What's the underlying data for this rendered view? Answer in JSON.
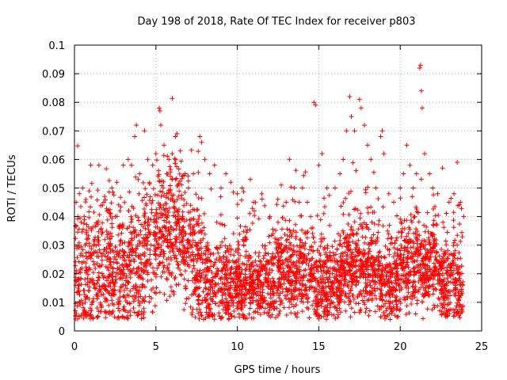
{
  "chart_data": {
    "type": "scatter",
    "title": "Day 198 of 2018, Rate Of TEC Index for receiver p803",
    "xlabel": "GPS time / hours",
    "ylabel": "ROTI / TECUs",
    "xlim": [
      0,
      25
    ],
    "ylim": [
      0,
      0.1
    ],
    "xticks": [
      0,
      5,
      10,
      15,
      20,
      25
    ],
    "xtick_labels": [
      "0",
      "5",
      "10",
      "15",
      "20",
      "25"
    ],
    "yticks": [
      0,
      0.01,
      0.02,
      0.03,
      0.04,
      0.05,
      0.06,
      0.07,
      0.08,
      0.09,
      0.1
    ],
    "ytick_labels": [
      "0",
      "0.01",
      "0.02",
      "0.03",
      "0.04",
      "0.05",
      "0.06",
      "0.07",
      "0.08",
      "0.09",
      "0.1"
    ],
    "grid": true,
    "legend": "none",
    "marker": "plus",
    "series": [
      {
        "color": "#ff0000",
        "points": [
          [
            0.1,
            0.045
          ],
          [
            0.2,
            0.04
          ],
          [
            0.3,
            0.048
          ],
          [
            0.5,
            0.05
          ],
          [
            0.7,
            0.046
          ],
          [
            0.9,
            0.049
          ],
          [
            1.0,
            0.058
          ],
          [
            1.5,
            0.058
          ],
          [
            1.8,
            0.045
          ],
          [
            2.0,
            0.042
          ],
          [
            2.3,
            0.05
          ],
          [
            2.6,
            0.052
          ],
          [
            3.0,
            0.058
          ],
          [
            3.3,
            0.06
          ],
          [
            3.5,
            0.058
          ],
          [
            3.7,
            0.068
          ],
          [
            3.8,
            0.072
          ],
          [
            4.0,
            0.055
          ],
          [
            4.3,
            0.07
          ],
          [
            4.5,
            0.06
          ],
          [
            4.8,
            0.058
          ],
          [
            5.0,
            0.062
          ],
          [
            5.2,
            0.078
          ],
          [
            5.25,
            0.077
          ],
          [
            5.3,
            0.072
          ],
          [
            5.5,
            0.065
          ],
          [
            5.8,
            0.06
          ],
          [
            6.0,
            0.062
          ],
          [
            6.2,
            0.068
          ],
          [
            6.3,
            0.069
          ],
          [
            6.5,
            0.063
          ],
          [
            6.8,
            0.055
          ],
          [
            7.0,
            0.05
          ],
          [
            7.3,
            0.055
          ],
          [
            7.7,
            0.068
          ],
          [
            7.8,
            0.066
          ],
          [
            8.0,
            0.06
          ],
          [
            8.3,
            0.055
          ],
          [
            8.6,
            0.058
          ],
          [
            9.0,
            0.05
          ],
          [
            9.3,
            0.055
          ],
          [
            9.6,
            0.052
          ],
          [
            10.0,
            0.048
          ],
          [
            10.3,
            0.05
          ],
          [
            10.8,
            0.053
          ],
          [
            11.0,
            0.045
          ],
          [
            11.5,
            0.048
          ],
          [
            12.0,
            0.04
          ],
          [
            12.5,
            0.038
          ],
          [
            13.0,
            0.045
          ],
          [
            13.2,
            0.06
          ],
          [
            13.5,
            0.05
          ],
          [
            13.8,
            0.045
          ],
          [
            14.0,
            0.05
          ],
          [
            14.3,
            0.045
          ],
          [
            14.5,
            0.04
          ],
          [
            14.7,
            0.08
          ],
          [
            14.8,
            0.079
          ],
          [
            15.0,
            0.058
          ],
          [
            15.2,
            0.062
          ],
          [
            15.5,
            0.05
          ],
          [
            16.0,
            0.05
          ],
          [
            16.3,
            0.055
          ],
          [
            16.5,
            0.06
          ],
          [
            16.7,
            0.07
          ],
          [
            16.9,
            0.082
          ],
          [
            17.0,
            0.075
          ],
          [
            17.2,
            0.07
          ],
          [
            17.5,
            0.081
          ],
          [
            17.6,
            0.078
          ],
          [
            17.8,
            0.072
          ],
          [
            18.0,
            0.065
          ],
          [
            18.2,
            0.06
          ],
          [
            18.5,
            0.05
          ],
          [
            18.8,
            0.068
          ],
          [
            18.9,
            0.07
          ],
          [
            19.0,
            0.062
          ],
          [
            19.3,
            0.048
          ],
          [
            19.6,
            0.045
          ],
          [
            20.0,
            0.05
          ],
          [
            20.2,
            0.055
          ],
          [
            20.4,
            0.065
          ],
          [
            20.6,
            0.058
          ],
          [
            20.8,
            0.05
          ],
          [
            21.0,
            0.055
          ],
          [
            21.2,
            0.092
          ],
          [
            21.25,
            0.093
          ],
          [
            21.3,
            0.084
          ],
          [
            21.35,
            0.078
          ],
          [
            21.5,
            0.062
          ],
          [
            21.8,
            0.055
          ],
          [
            22.0,
            0.05
          ],
          [
            22.3,
            0.048
          ],
          [
            22.6,
            0.057
          ],
          [
            23.0,
            0.045
          ],
          [
            23.3,
            0.048
          ],
          [
            23.5,
            0.059
          ],
          [
            23.7,
            0.045
          ],
          [
            23.9,
            0.04
          ]
        ]
      }
    ]
  }
}
